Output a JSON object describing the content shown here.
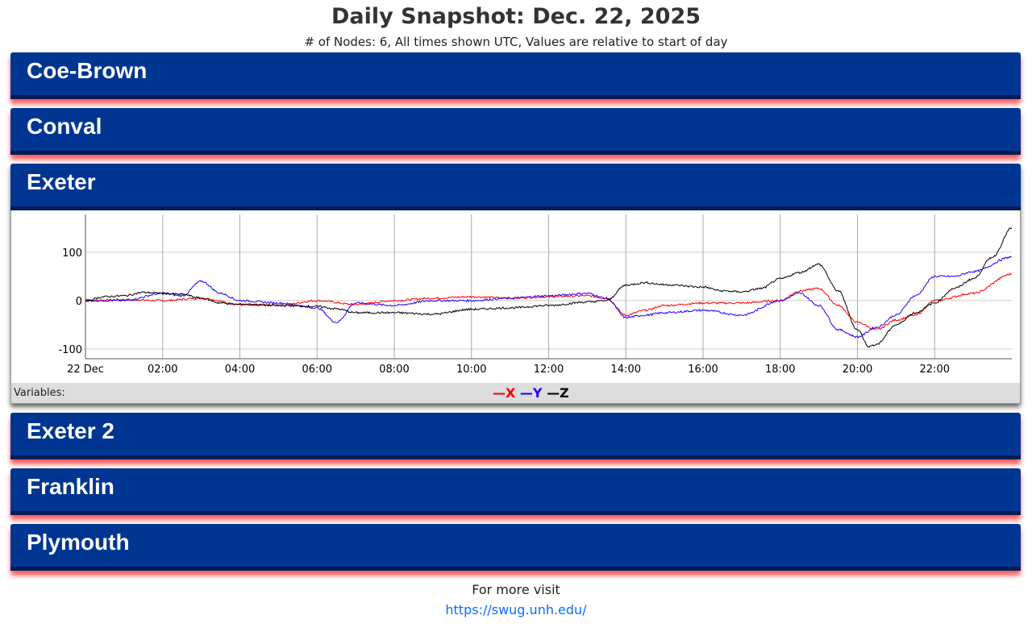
{
  "title": "Daily Snapshot: Dec. 22, 2025",
  "subtitle": "# of Nodes: 6, All times shown UTC, Values are relative to start of day",
  "nodes": [
    {
      "name": "Coe-Brown"
    },
    {
      "name": "Conval"
    },
    {
      "name": "Exeter"
    },
    {
      "name": "Exeter 2"
    },
    {
      "name": "Franklin"
    },
    {
      "name": "Plymouth"
    }
  ],
  "legend": {
    "label": "Variables:",
    "x": "X",
    "y": "Y",
    "z": "Z",
    "colors": {
      "x": "#ff0000",
      "y": "#2200ff",
      "z": "#000000"
    }
  },
  "footer": {
    "text": "For more visit",
    "link": "https://swug.unh.edu/"
  },
  "chart_data": {
    "type": "line",
    "title": "Exeter",
    "xlabel": "",
    "ylabel": "",
    "x_ticks": [
      "22 Dec",
      "02:00",
      "04:00",
      "06:00",
      "08:00",
      "10:00",
      "12:00",
      "14:00",
      "16:00",
      "18:00",
      "20:00",
      "22:00"
    ],
    "y_ticks": [
      100,
      0,
      -100
    ],
    "ylim": [
      -120,
      178
    ],
    "xlim_hours": [
      0,
      24
    ],
    "series": [
      {
        "name": "X",
        "color": "#ff0000",
        "points": [
          [
            0,
            0
          ],
          [
            1,
            2
          ],
          [
            2,
            0
          ],
          [
            3,
            5
          ],
          [
            4,
            -8
          ],
          [
            5,
            -10
          ],
          [
            6,
            0
          ],
          [
            7,
            -8
          ],
          [
            8,
            0
          ],
          [
            9,
            5
          ],
          [
            10,
            8
          ],
          [
            11,
            5
          ],
          [
            12,
            8
          ],
          [
            13,
            10
          ],
          [
            13.5,
            5
          ],
          [
            14,
            -30
          ],
          [
            14.5,
            -20
          ],
          [
            15,
            -10
          ],
          [
            16,
            -5
          ],
          [
            17,
            -5
          ],
          [
            18,
            0
          ],
          [
            18.5,
            20
          ],
          [
            19,
            25
          ],
          [
            19.5,
            -10
          ],
          [
            20,
            -45
          ],
          [
            20.5,
            -60
          ],
          [
            21,
            -40
          ],
          [
            21.5,
            -30
          ],
          [
            22,
            0
          ],
          [
            23,
            15
          ],
          [
            24,
            55
          ]
        ]
      },
      {
        "name": "Y",
        "color": "#2200ff",
        "points": [
          [
            0,
            0
          ],
          [
            1,
            0
          ],
          [
            2,
            15
          ],
          [
            2.5,
            10
          ],
          [
            3,
            40
          ],
          [
            3.5,
            15
          ],
          [
            4,
            0
          ],
          [
            5,
            -5
          ],
          [
            6,
            -15
          ],
          [
            6.5,
            -45
          ],
          [
            7,
            -5
          ],
          [
            8,
            -10
          ],
          [
            9,
            0
          ],
          [
            10,
            0
          ],
          [
            11,
            5
          ],
          [
            12,
            10
          ],
          [
            13,
            15
          ],
          [
            13.5,
            5
          ],
          [
            14,
            -35
          ],
          [
            14.5,
            -30
          ],
          [
            15,
            -25
          ],
          [
            16,
            -20
          ],
          [
            17,
            -30
          ],
          [
            18,
            0
          ],
          [
            18.5,
            15
          ],
          [
            19,
            -10
          ],
          [
            19.5,
            -60
          ],
          [
            20,
            -75
          ],
          [
            20.5,
            -55
          ],
          [
            21,
            -30
          ],
          [
            21.5,
            10
          ],
          [
            22,
            50
          ],
          [
            22.5,
            50
          ],
          [
            23,
            60
          ],
          [
            24,
            90
          ]
        ]
      },
      {
        "name": "Z",
        "color": "#000000",
        "points": [
          [
            0,
            0
          ],
          [
            0.5,
            8
          ],
          [
            1,
            10
          ],
          [
            1.5,
            17
          ],
          [
            2,
            15
          ],
          [
            2.5,
            13
          ],
          [
            3,
            5
          ],
          [
            3.5,
            -5
          ],
          [
            4,
            -8
          ],
          [
            5,
            -10
          ],
          [
            6,
            -12
          ],
          [
            6.5,
            -17
          ],
          [
            7,
            -25
          ],
          [
            8,
            -25
          ],
          [
            9,
            -28
          ],
          [
            10,
            -18
          ],
          [
            11,
            -15
          ],
          [
            12,
            -10
          ],
          [
            13,
            -3
          ],
          [
            13.5,
            0
          ],
          [
            14,
            32
          ],
          [
            14.5,
            37
          ],
          [
            15,
            33
          ],
          [
            16,
            28
          ],
          [
            16.5,
            20
          ],
          [
            17,
            18
          ],
          [
            17.5,
            25
          ],
          [
            18,
            45
          ],
          [
            18.5,
            58
          ],
          [
            19,
            75
          ],
          [
            19.5,
            20
          ],
          [
            20,
            -60
          ],
          [
            20.3,
            -95
          ],
          [
            20.5,
            -90
          ],
          [
            21,
            -50
          ],
          [
            21.5,
            -25
          ],
          [
            22,
            -5
          ],
          [
            22.5,
            25
          ],
          [
            23,
            45
          ],
          [
            23.5,
            90
          ],
          [
            24,
            150
          ]
        ]
      }
    ]
  }
}
